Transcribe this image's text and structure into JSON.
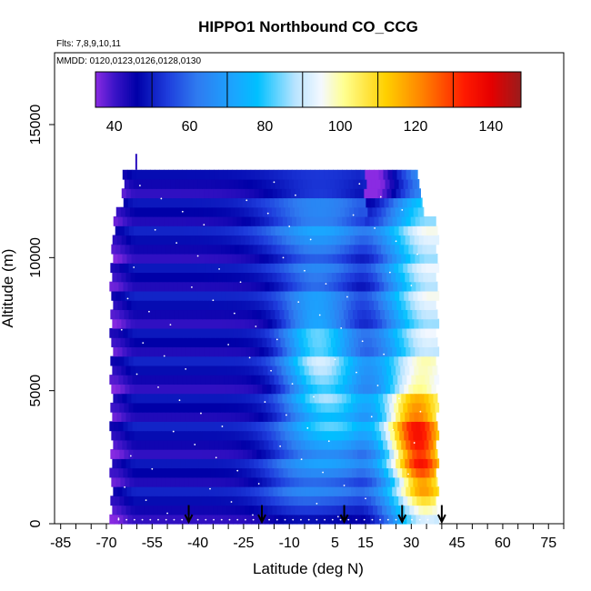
{
  "chart_data": {
    "type": "heatmap",
    "title": "HIPPO1 Northbound CO_CCG",
    "subtitle_flights": "Flts: 7,8,9,10,11",
    "subtitle_dates": "MMDD: 0120,0123,0126,0128,0130",
    "xlabel": "Latitude (deg N)",
    "ylabel": "Altitude (m)",
    "xlim": [
      -87,
      80
    ],
    "ylim": [
      0,
      17700
    ],
    "x_ticks": [
      "-85",
      "-70",
      "-55",
      "-40",
      "-25",
      "-10",
      "5",
      "15",
      "30",
      "45",
      "60",
      "75"
    ],
    "y_ticks": [
      "0",
      "5000",
      "10000",
      "15000"
    ],
    "colorbar": {
      "range": [
        35,
        148
      ],
      "tick_labels": [
        "40",
        "60",
        "80",
        "100",
        "120",
        "140"
      ],
      "tick_values": [
        40,
        60,
        80,
        100,
        120,
        140
      ],
      "stops": [
        {
          "v": 35,
          "color": "#8a2be2"
        },
        {
          "v": 40,
          "color": "#3c14c8"
        },
        {
          "v": 46,
          "color": "#0000a8"
        },
        {
          "v": 54,
          "color": "#1e3cdc"
        },
        {
          "v": 62,
          "color": "#2f7bf0"
        },
        {
          "v": 72,
          "color": "#1aa6ff"
        },
        {
          "v": 78,
          "color": "#00c0ff"
        },
        {
          "v": 88,
          "color": "#b8e4ff"
        },
        {
          "v": 95,
          "color": "#f4f8ff"
        },
        {
          "v": 101,
          "color": "#ffff90"
        },
        {
          "v": 112,
          "color": "#ffd000"
        },
        {
          "v": 122,
          "color": "#ff8000"
        },
        {
          "v": 133,
          "color": "#ff1a00"
        },
        {
          "v": 140,
          "color": "#e60000"
        },
        {
          "v": 148,
          "color": "#9a1c1c"
        }
      ]
    },
    "field_domain": {
      "lat": [
        -69,
        39
      ],
      "alt": [
        0,
        13300
      ]
    },
    "flight_arrows_lat": [
      -43,
      -19,
      8,
      27,
      40
    ],
    "grid": false,
    "colorbar_placement": "top"
  }
}
